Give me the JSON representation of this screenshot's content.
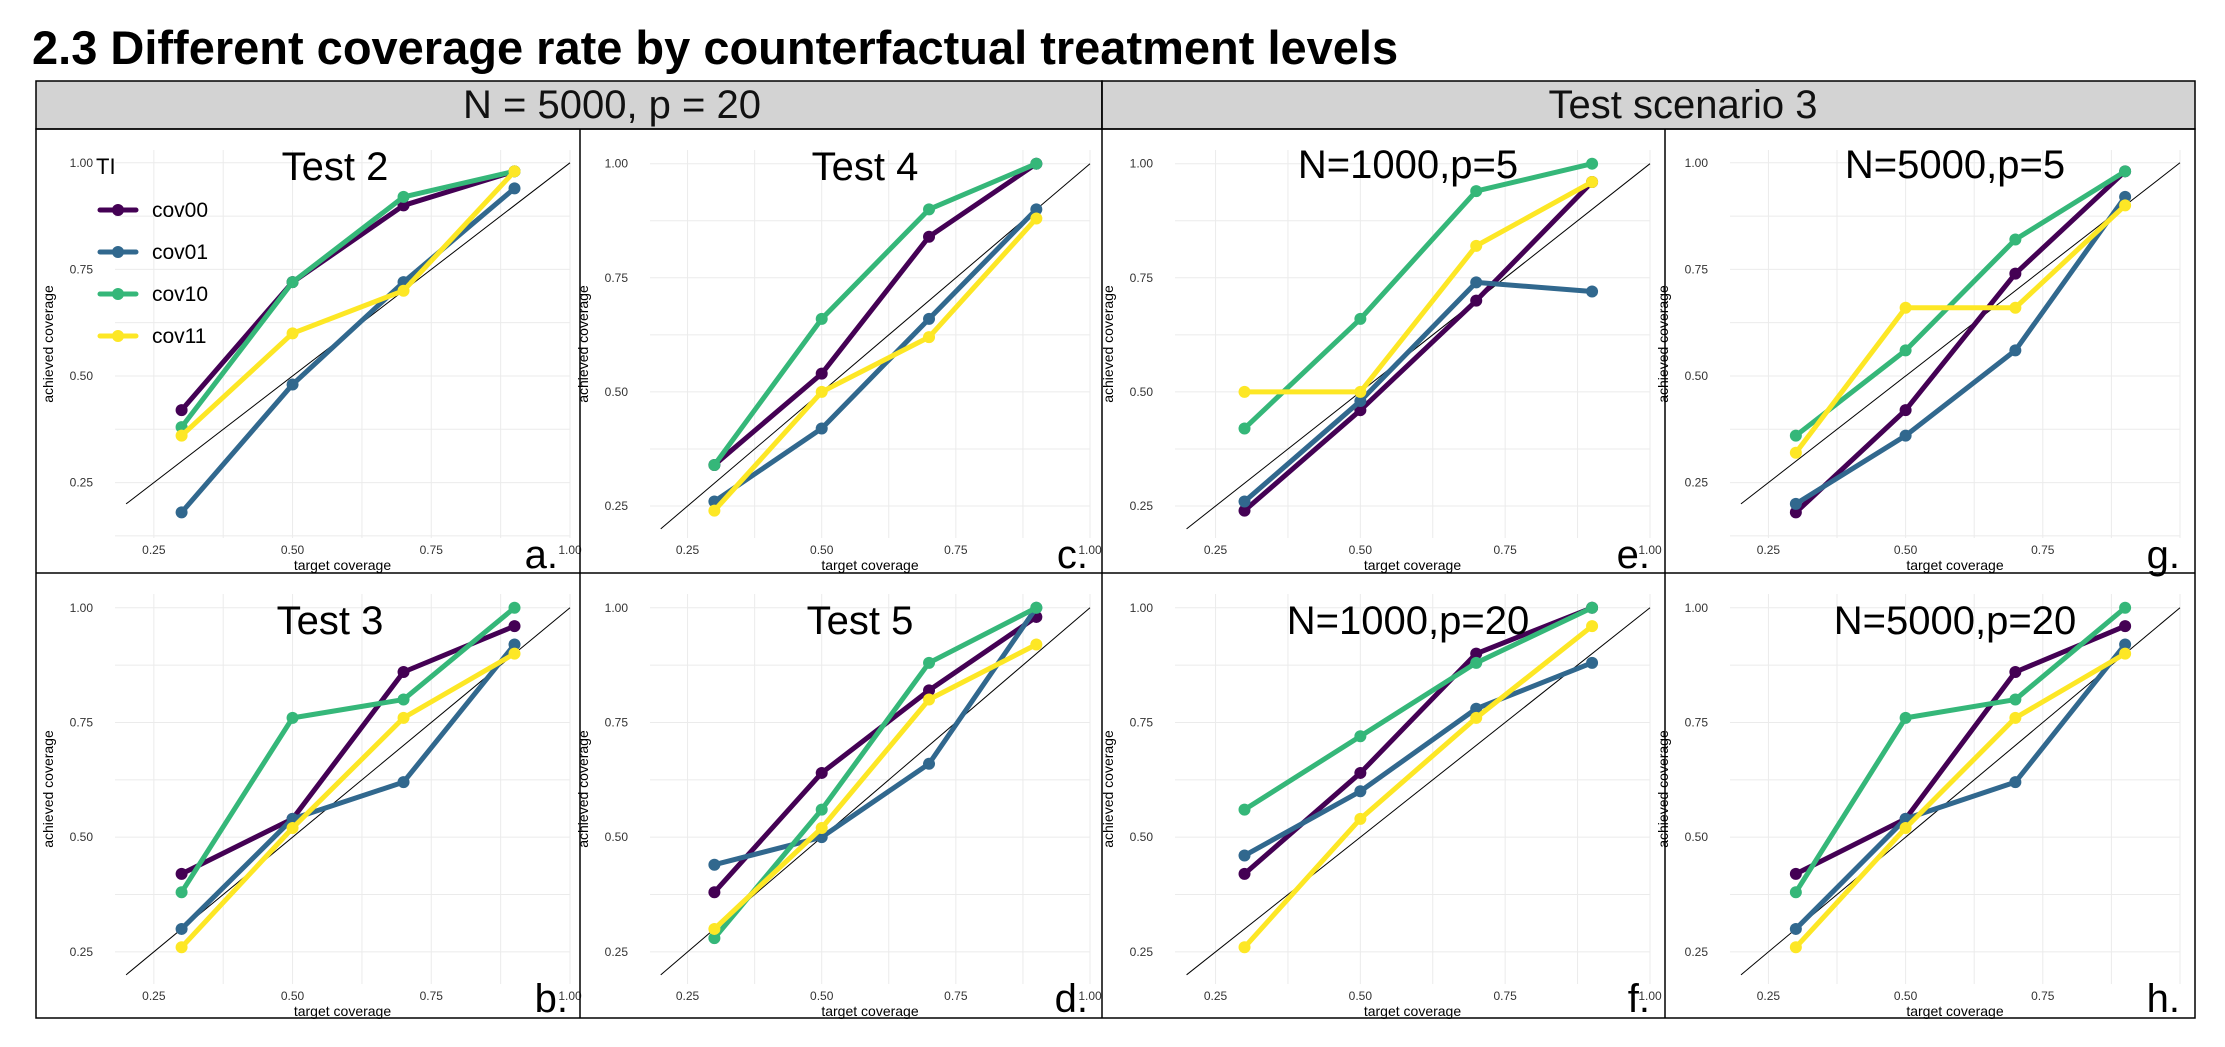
{
  "page": {
    "title": "2.3 Different coverage rate by counterfactual treatment levels"
  },
  "strips": [
    {
      "label": "N = 5000, p = 20"
    },
    {
      "label": "Test scenario 3"
    }
  ],
  "legend": {
    "title": "TI",
    "entries": [
      "cov00",
      "cov01",
      "cov10",
      "cov11"
    ]
  },
  "colors": {
    "cov00": "#440154",
    "cov01": "#31688e",
    "cov10": "#35b779",
    "cov11": "#fde725",
    "strip_bg": "#d3d3d3",
    "grid": "#ebebeb",
    "diagonal": "#000000"
  },
  "chart_data": [
    {
      "type": "line",
      "panel": "a",
      "title": "Test 2",
      "letter": "a.",
      "xlabel": "target coverage",
      "ylabel": "achieved coverage",
      "xlim": [
        0.18,
        1.0
      ],
      "ylim": [
        0.12,
        1.03
      ],
      "xticks": [
        "0.25",
        "0.50",
        "0.75",
        "1.00"
      ],
      "yticks": [
        "0.25",
        "0.50",
        "0.75",
        "1.00"
      ],
      "x": [
        0.3,
        0.5,
        0.7,
        0.9
      ],
      "series": [
        {
          "name": "cov00",
          "values": [
            0.42,
            0.72,
            0.9,
            0.98
          ]
        },
        {
          "name": "cov01",
          "values": [
            0.18,
            0.48,
            0.72,
            0.94
          ]
        },
        {
          "name": "cov10",
          "values": [
            0.38,
            0.72,
            0.92,
            0.98
          ]
        },
        {
          "name": "cov11",
          "values": [
            0.36,
            0.6,
            0.7,
            0.98
          ]
        }
      ]
    },
    {
      "type": "line",
      "panel": "b",
      "title": "Test 3",
      "letter": "b.",
      "xlabel": "target coverage",
      "ylabel": "achieved coverage",
      "xlim": [
        0.18,
        1.0
      ],
      "ylim": [
        0.18,
        1.03
      ],
      "xticks": [
        "0.25",
        "0.50",
        "0.75",
        "1.00"
      ],
      "yticks": [
        "0.25",
        "0.50",
        "0.75",
        "1.00"
      ],
      "x": [
        0.3,
        0.5,
        0.7,
        0.9
      ],
      "series": [
        {
          "name": "cov00",
          "values": [
            0.42,
            0.54,
            0.86,
            0.96
          ]
        },
        {
          "name": "cov01",
          "values": [
            0.3,
            0.54,
            0.62,
            0.92
          ]
        },
        {
          "name": "cov10",
          "values": [
            0.38,
            0.76,
            0.8,
            1.0
          ]
        },
        {
          "name": "cov11",
          "values": [
            0.26,
            0.52,
            0.76,
            0.9
          ]
        }
      ]
    },
    {
      "type": "line",
      "panel": "c",
      "title": "Test 4",
      "letter": "c.",
      "xlabel": "target coverage",
      "ylabel": "achieved coverage",
      "xlim": [
        0.18,
        1.0
      ],
      "ylim": [
        0.18,
        1.03
      ],
      "xticks": [
        "0.25",
        "0.50",
        "0.75",
        "1.00"
      ],
      "yticks": [
        "0.25",
        "0.50",
        "0.75",
        "1.00"
      ],
      "x": [
        0.3,
        0.5,
        0.7,
        0.9
      ],
      "series": [
        {
          "name": "cov00",
          "values": [
            0.34,
            0.54,
            0.84,
            1.0
          ]
        },
        {
          "name": "cov01",
          "values": [
            0.26,
            0.42,
            0.66,
            0.9
          ]
        },
        {
          "name": "cov10",
          "values": [
            0.34,
            0.66,
            0.9,
            1.0
          ]
        },
        {
          "name": "cov11",
          "values": [
            0.24,
            0.5,
            0.62,
            0.88
          ]
        }
      ]
    },
    {
      "type": "line",
      "panel": "d",
      "title": "Test 5",
      "letter": "d.",
      "xlabel": "target coverage",
      "ylabel": "achieved coverage",
      "xlim": [
        0.18,
        1.0
      ],
      "ylim": [
        0.18,
        1.03
      ],
      "xticks": [
        "0.25",
        "0.50",
        "0.75",
        "1.00"
      ],
      "yticks": [
        "0.25",
        "0.50",
        "0.75",
        "1.00"
      ],
      "x": [
        0.3,
        0.5,
        0.7,
        0.9
      ],
      "series": [
        {
          "name": "cov00",
          "values": [
            0.38,
            0.64,
            0.82,
            0.98
          ]
        },
        {
          "name": "cov01",
          "values": [
            0.44,
            0.5,
            0.66,
            1.0
          ]
        },
        {
          "name": "cov10",
          "values": [
            0.28,
            0.56,
            0.88,
            1.0
          ]
        },
        {
          "name": "cov11",
          "values": [
            0.3,
            0.52,
            0.8,
            0.92
          ]
        }
      ]
    },
    {
      "type": "line",
      "panel": "e",
      "title": "N=1000,p=5",
      "letter": "e.",
      "xlabel": "target coverage",
      "ylabel": "achieved coverage",
      "xlim": [
        0.18,
        1.0
      ],
      "ylim": [
        0.18,
        1.03
      ],
      "xticks": [
        "0.25",
        "0.50",
        "0.75",
        "1.00"
      ],
      "yticks": [
        "0.25",
        "0.50",
        "0.75",
        "1.00"
      ],
      "x": [
        0.3,
        0.5,
        0.7,
        0.9
      ],
      "series": [
        {
          "name": "cov00",
          "values": [
            0.24,
            0.46,
            0.7,
            0.96
          ]
        },
        {
          "name": "cov01",
          "values": [
            0.26,
            0.48,
            0.74,
            0.72
          ]
        },
        {
          "name": "cov10",
          "values": [
            0.42,
            0.66,
            0.94,
            1.0
          ]
        },
        {
          "name": "cov11",
          "values": [
            0.5,
            0.5,
            0.82,
            0.96
          ]
        }
      ]
    },
    {
      "type": "line",
      "panel": "f",
      "title": "N=1000,p=20",
      "letter": "f.",
      "xlabel": "target coverage",
      "ylabel": "achieved coverage",
      "xlim": [
        0.18,
        1.0
      ],
      "ylim": [
        0.18,
        1.03
      ],
      "xticks": [
        "0.25",
        "0.50",
        "0.75",
        "1.00"
      ],
      "yticks": [
        "0.25",
        "0.50",
        "0.75",
        "1.00"
      ],
      "x": [
        0.3,
        0.5,
        0.7,
        0.9
      ],
      "series": [
        {
          "name": "cov00",
          "values": [
            0.42,
            0.64,
            0.9,
            1.0
          ]
        },
        {
          "name": "cov01",
          "values": [
            0.46,
            0.6,
            0.78,
            0.88
          ]
        },
        {
          "name": "cov10",
          "values": [
            0.56,
            0.72,
            0.88,
            1.0
          ]
        },
        {
          "name": "cov11",
          "values": [
            0.26,
            0.54,
            0.76,
            0.96
          ]
        }
      ]
    },
    {
      "type": "line",
      "panel": "g",
      "title": "N=5000,p=5",
      "letter": "g.",
      "xlabel": "target coverage",
      "ylabel": "achieved coverage",
      "xlim": [
        0.18,
        1.0
      ],
      "ylim": [
        0.12,
        1.03
      ],
      "xticks": [
        "0.25",
        "0.50",
        "0.75"
      ],
      "yticks": [
        "0.25",
        "0.50",
        "0.75",
        "1.00"
      ],
      "x": [
        0.3,
        0.5,
        0.7,
        0.9
      ],
      "series": [
        {
          "name": "cov00",
          "values": [
            0.18,
            0.42,
            0.74,
            0.98
          ]
        },
        {
          "name": "cov01",
          "values": [
            0.2,
            0.36,
            0.56,
            0.92
          ]
        },
        {
          "name": "cov10",
          "values": [
            0.36,
            0.56,
            0.82,
            0.98
          ]
        },
        {
          "name": "cov11",
          "values": [
            0.32,
            0.66,
            0.66,
            0.9
          ]
        }
      ]
    },
    {
      "type": "line",
      "panel": "h",
      "title": "N=5000,p=20",
      "letter": "h.",
      "xlabel": "target coverage",
      "ylabel": "achieved coverage",
      "xlim": [
        0.18,
        1.0
      ],
      "ylim": [
        0.18,
        1.03
      ],
      "xticks": [
        "0.25",
        "0.50",
        "0.75"
      ],
      "yticks": [
        "0.25",
        "0.50",
        "0.75",
        "1.00"
      ],
      "x": [
        0.3,
        0.5,
        0.7,
        0.9
      ],
      "series": [
        {
          "name": "cov00",
          "values": [
            0.42,
            0.54,
            0.86,
            0.96
          ]
        },
        {
          "name": "cov01",
          "values": [
            0.3,
            0.54,
            0.62,
            0.92
          ]
        },
        {
          "name": "cov10",
          "values": [
            0.38,
            0.76,
            0.8,
            1.0
          ]
        },
        {
          "name": "cov11",
          "values": [
            0.26,
            0.52,
            0.76,
            0.9
          ]
        }
      ]
    }
  ]
}
